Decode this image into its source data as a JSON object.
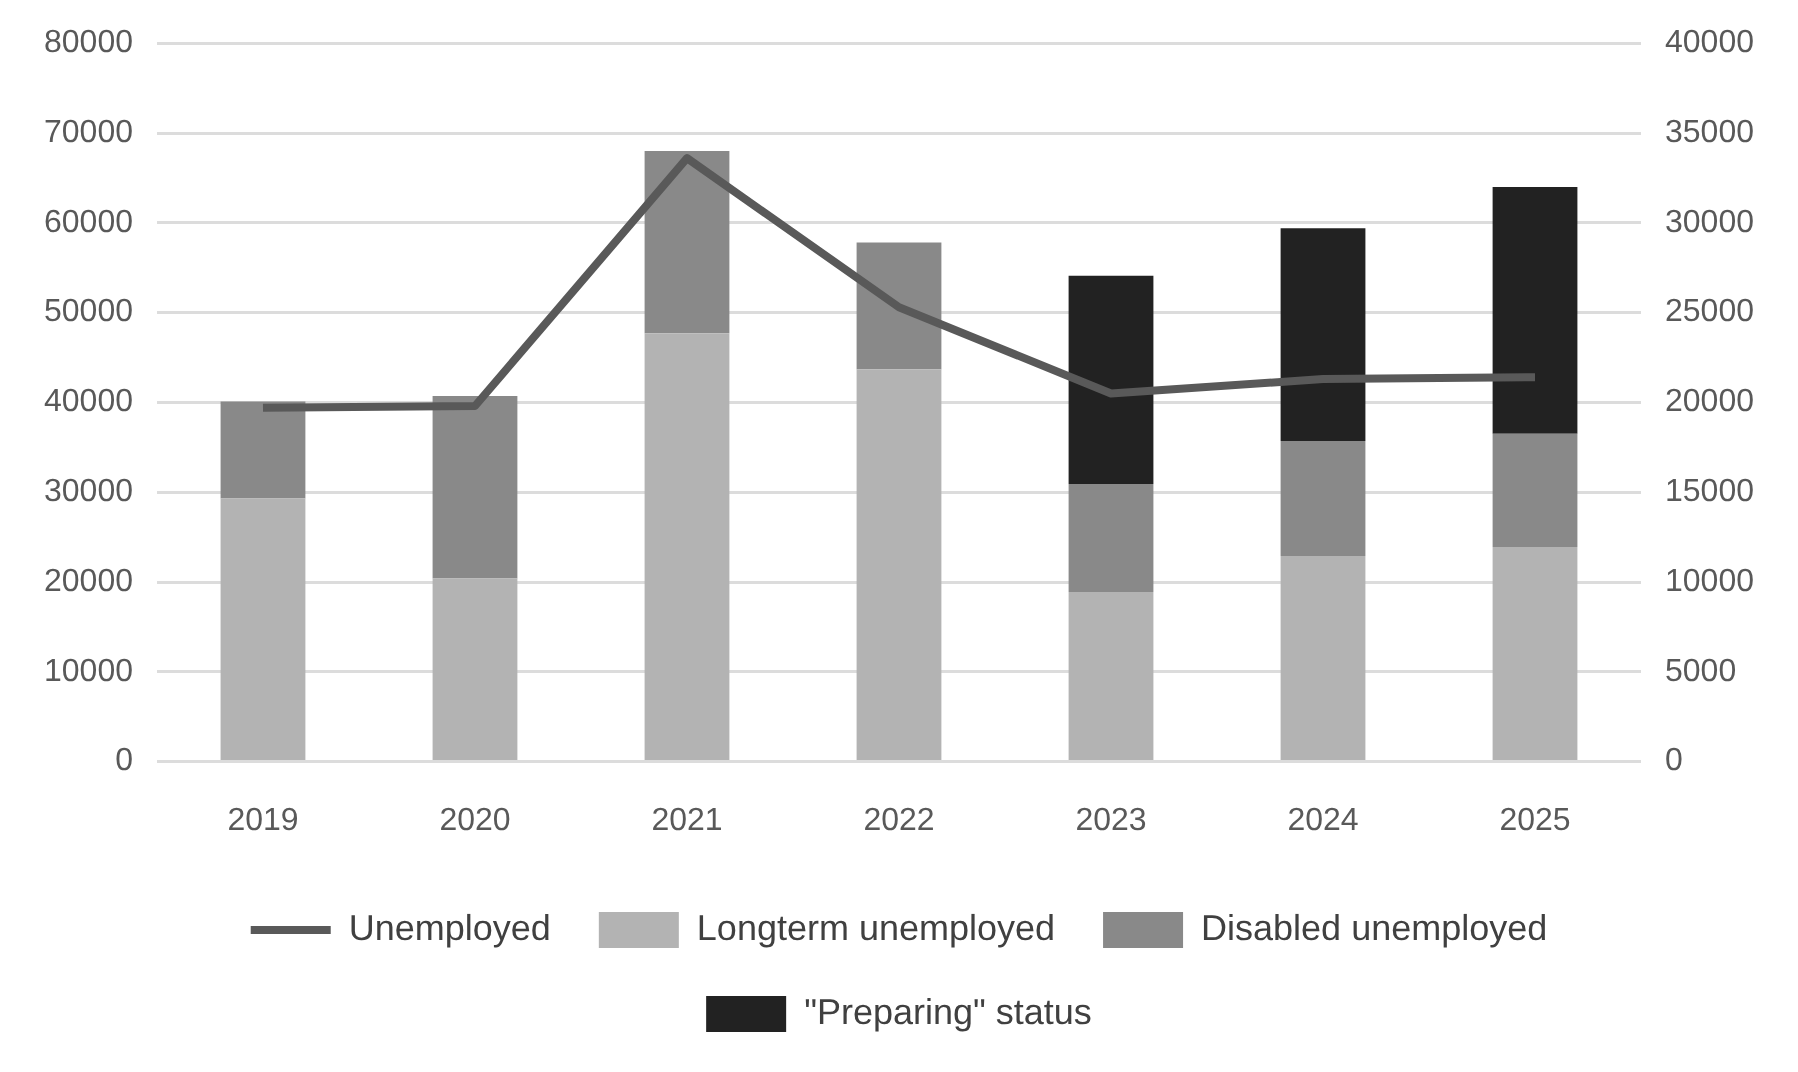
{
  "chart_data": {
    "type": "bar",
    "stacked": true,
    "categories": [
      "2019",
      "2020",
      "2021",
      "2022",
      "2023",
      "2024",
      "2025"
    ],
    "series": [
      {
        "name": "Longterm unemployed",
        "color": "#b3b3b3",
        "values": [
          29300,
          20400,
          47700,
          43700,
          18900,
          22900,
          23900
        ]
      },
      {
        "name": "Disabled unemployed",
        "color": "#898989",
        "values": [
          10800,
          20300,
          20300,
          14100,
          12000,
          12800,
          12600
        ]
      },
      {
        "name": "\"Preparing\" status",
        "color": "#222222",
        "values": [
          null,
          null,
          null,
          null,
          23200,
          23700,
          27500
        ]
      },
      {
        "name": "Unemployed",
        "type": "line",
        "axis": "y2",
        "color": "#595959",
        "values": [
          19700,
          19800,
          33600,
          25300,
          20500,
          21300,
          21400
        ]
      }
    ],
    "ylim": [
      0,
      80000
    ],
    "yticks": [
      0,
      10000,
      20000,
      30000,
      40000,
      50000,
      60000,
      70000,
      80000
    ],
    "y2lim": [
      0,
      40000
    ],
    "y2ticks": [
      0,
      5000,
      10000,
      15000,
      20000,
      25000,
      30000,
      35000,
      40000
    ],
    "grid": "y",
    "legend": "bottom",
    "marker": "none"
  }
}
